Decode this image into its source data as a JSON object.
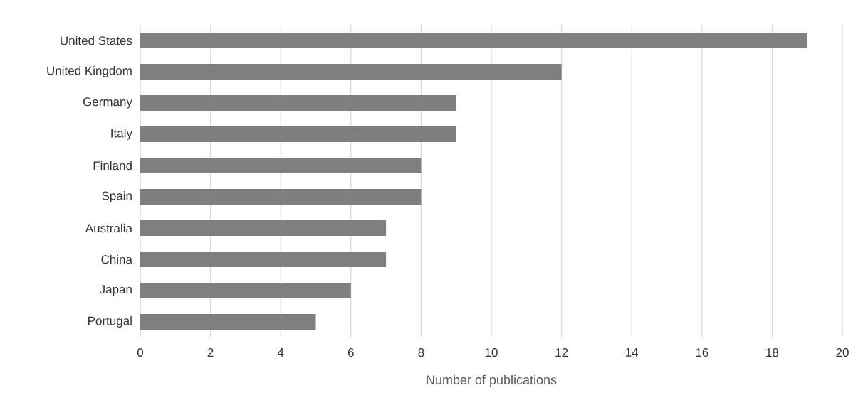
{
  "chart_data": {
    "type": "bar",
    "orientation": "horizontal",
    "xlabel": "Number of publications",
    "categories": [
      "United States",
      "United Kingdom",
      "Germany",
      "Italy",
      "Finland",
      "Spain",
      "Australia",
      "China",
      "Japan",
      "Portugal"
    ],
    "values": [
      19,
      12,
      9,
      9,
      8,
      8,
      7,
      7,
      6,
      5
    ],
    "color": "#7f7f7f",
    "xlim": [
      0,
      20
    ],
    "xticks": [
      0,
      2,
      4,
      6,
      8,
      10,
      12,
      14,
      16,
      18,
      20
    ],
    "grid": "x"
  }
}
